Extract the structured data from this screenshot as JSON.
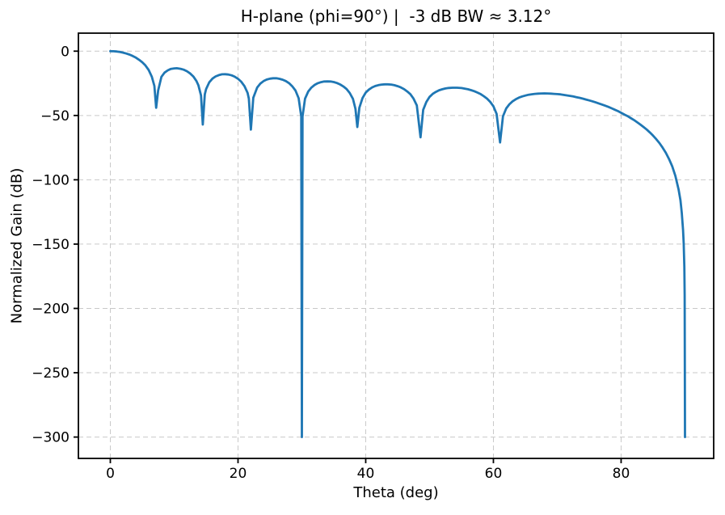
{
  "chart_data": {
    "type": "line",
    "title": "H-plane (phi=90°) |  -3 dB BW ≈ 3.12°",
    "xlabel": "Theta (deg)",
    "ylabel": "Normalized Gain (dB)",
    "xlim": [
      -5.0,
      94.5
    ],
    "ylim": [
      -316.6,
      14.0
    ],
    "xticks": [
      0,
      20,
      40,
      60,
      80
    ],
    "yticks": [
      0,
      -50,
      -100,
      -150,
      -200,
      -250,
      -300
    ],
    "grid": true,
    "grid_style": "dashed",
    "grid_color": "#c9c9c9",
    "legend": false,
    "line_color": "#1f77b4",
    "line_width": 2.8,
    "floor_db": -300,
    "series": [
      {
        "points": [
          [
            0,
            0
          ],
          [
            0.5,
            -0.07
          ],
          [
            1,
            -0.28
          ],
          [
            1.5,
            -0.63
          ],
          [
            2,
            -1.14
          ],
          [
            2.5,
            -1.81
          ],
          [
            3,
            -2.67
          ],
          [
            3.5,
            -3.71
          ],
          [
            4,
            -5.02
          ],
          [
            4.5,
            -6.65
          ],
          [
            5,
            -8.6
          ],
          [
            5.5,
            -11.1
          ],
          [
            6,
            -14.6
          ],
          [
            6.5,
            -19.8
          ],
          [
            6.9,
            -27
          ],
          [
            7.18,
            -44
          ],
          [
            7.5,
            -30.5
          ],
          [
            8,
            -20
          ],
          [
            8.5,
            -16.7
          ],
          [
            9,
            -14.9
          ],
          [
            9.5,
            -13.8
          ],
          [
            10,
            -13.4
          ],
          [
            10.4,
            -13.3
          ],
          [
            11,
            -13.7
          ],
          [
            11.5,
            -14.4
          ],
          [
            12,
            -15.6
          ],
          [
            12.5,
            -17.3
          ],
          [
            13,
            -19.7
          ],
          [
            13.5,
            -23.3
          ],
          [
            13.8,
            -26.6
          ],
          [
            14.2,
            -34.4
          ],
          [
            14.48,
            -57
          ],
          [
            14.8,
            -33.5
          ],
          [
            15,
            -29.5
          ],
          [
            15.5,
            -24.2
          ],
          [
            16,
            -21.3
          ],
          [
            16.5,
            -19.6
          ],
          [
            17,
            -18.6
          ],
          [
            17.5,
            -18
          ],
          [
            18,
            -17.9
          ],
          [
            18.5,
            -18.2
          ],
          [
            19,
            -18.8
          ],
          [
            19.5,
            -19.9
          ],
          [
            20,
            -21.5
          ],
          [
            20.5,
            -23.7
          ],
          [
            21,
            -27.1
          ],
          [
            21.5,
            -32.4
          ],
          [
            21.7,
            -37
          ],
          [
            22.02,
            -61
          ],
          [
            22.4,
            -36.2
          ],
          [
            23,
            -28.3
          ],
          [
            23.5,
            -25.2
          ],
          [
            24,
            -23.3
          ],
          [
            24.5,
            -22.1
          ],
          [
            25,
            -21.4
          ],
          [
            25.5,
            -21.1
          ],
          [
            26,
            -21.1
          ],
          [
            26.5,
            -21.5
          ],
          [
            27,
            -22.2
          ],
          [
            27.5,
            -23.3
          ],
          [
            28,
            -24.9
          ],
          [
            28.5,
            -27.3
          ],
          [
            29,
            -30.6
          ],
          [
            29.5,
            -36.6
          ],
          [
            29.9,
            -50.7
          ],
          [
            30,
            -300
          ],
          [
            30.1,
            -50.8
          ],
          [
            30.5,
            -37
          ],
          [
            31,
            -31.3
          ],
          [
            31.5,
            -28.3
          ],
          [
            32,
            -26.2
          ],
          [
            32.5,
            -24.9
          ],
          [
            33,
            -24.1
          ],
          [
            33.5,
            -23.6
          ],
          [
            34,
            -23.5
          ],
          [
            34.5,
            -23.6
          ],
          [
            35,
            -24
          ],
          [
            35.5,
            -24.8
          ],
          [
            36,
            -25.9
          ],
          [
            36.5,
            -27.4
          ],
          [
            37,
            -29.4
          ],
          [
            37.5,
            -32.5
          ],
          [
            38,
            -37.1
          ],
          [
            38.4,
            -44.9
          ],
          [
            38.68,
            -59
          ],
          [
            39,
            -44
          ],
          [
            39.5,
            -36.5
          ],
          [
            40,
            -32.2
          ],
          [
            40.5,
            -29.9
          ],
          [
            41,
            -28.2
          ],
          [
            41.5,
            -27.1
          ],
          [
            42,
            -26.4
          ],
          [
            42.5,
            -26
          ],
          [
            43,
            -25.8
          ],
          [
            43.43,
            -25.8
          ],
          [
            44,
            -26
          ],
          [
            44.5,
            -26.5
          ],
          [
            45,
            -27.2
          ],
          [
            45.5,
            -28.2
          ],
          [
            46,
            -29.5
          ],
          [
            46.5,
            -31.3
          ],
          [
            47,
            -33.5
          ],
          [
            47.5,
            -37
          ],
          [
            48,
            -42.2
          ],
          [
            48.59,
            -67
          ],
          [
            49,
            -45.6
          ],
          [
            49.5,
            -39.5
          ],
          [
            50,
            -35.5
          ],
          [
            50.5,
            -33.2
          ],
          [
            51,
            -31.6
          ],
          [
            51.5,
            -30.4
          ],
          [
            52,
            -29.6
          ],
          [
            52.5,
            -29
          ],
          [
            53,
            -28.6
          ],
          [
            53.6,
            -28.4
          ],
          [
            54.3,
            -28.4
          ],
          [
            55,
            -28.7
          ],
          [
            55.5,
            -29.1
          ],
          [
            56,
            -29.6
          ],
          [
            56.5,
            -30.3
          ],
          [
            57,
            -31.1
          ],
          [
            57.5,
            -32.2
          ],
          [
            58,
            -33.4
          ],
          [
            58.5,
            -35
          ],
          [
            59,
            -36.9
          ],
          [
            59.5,
            -39.4
          ],
          [
            60,
            -42.9
          ],
          [
            60.5,
            -48.7
          ],
          [
            61.04,
            -71
          ],
          [
            61.5,
            -50.7
          ],
          [
            62,
            -44.5
          ],
          [
            62.5,
            -41.3
          ],
          [
            63,
            -39
          ],
          [
            63.5,
            -37.4
          ],
          [
            64,
            -36.1
          ],
          [
            64.5,
            -35.2
          ],
          [
            65,
            -34.5
          ],
          [
            65.5,
            -33.9
          ],
          [
            66,
            -33.5
          ],
          [
            66.5,
            -33.2
          ],
          [
            67,
            -33
          ],
          [
            67.5,
            -32.9
          ],
          [
            68,
            -32.8
          ],
          [
            68.5,
            -32.9
          ],
          [
            69,
            -33
          ],
          [
            69.5,
            -33.2
          ],
          [
            70,
            -33.4
          ],
          [
            70.5,
            -33.6
          ],
          [
            71,
            -34
          ],
          [
            71.5,
            -34.4
          ],
          [
            72,
            -34.8
          ],
          [
            72.5,
            -35.2
          ],
          [
            73,
            -35.8
          ],
          [
            73.5,
            -36.3
          ],
          [
            74,
            -36.9
          ],
          [
            74.5,
            -37.6
          ],
          [
            75,
            -38.3
          ],
          [
            75.5,
            -39
          ],
          [
            76,
            -39.8
          ],
          [
            76.5,
            -40.6
          ],
          [
            77,
            -41.5
          ],
          [
            77.5,
            -42.4
          ],
          [
            78,
            -43.3
          ],
          [
            78.5,
            -44.4
          ],
          [
            79,
            -45.5
          ],
          [
            79.5,
            -46.6
          ],
          [
            80,
            -47.9
          ],
          [
            80.5,
            -49.2
          ],
          [
            81,
            -50.5
          ],
          [
            81.5,
            -52
          ],
          [
            82,
            -53.5
          ],
          [
            82.5,
            -55.2
          ],
          [
            83,
            -57
          ],
          [
            83.5,
            -58.9
          ],
          [
            84,
            -60.9
          ],
          [
            84.5,
            -63.2
          ],
          [
            85,
            -65.7
          ],
          [
            85.5,
            -68.4
          ],
          [
            86,
            -71.5
          ],
          [
            86.5,
            -75
          ],
          [
            87,
            -79
          ],
          [
            87.5,
            -83.8
          ],
          [
            88,
            -89.5
          ],
          [
            88.5,
            -97
          ],
          [
            89,
            -107.6
          ],
          [
            89.3,
            -116
          ],
          [
            89.5,
            -125.6
          ],
          [
            89.7,
            -139
          ],
          [
            89.8,
            -149.5
          ],
          [
            89.9,
            -167.6
          ],
          [
            89.95,
            -190
          ],
          [
            90,
            -300
          ]
        ]
      }
    ]
  }
}
